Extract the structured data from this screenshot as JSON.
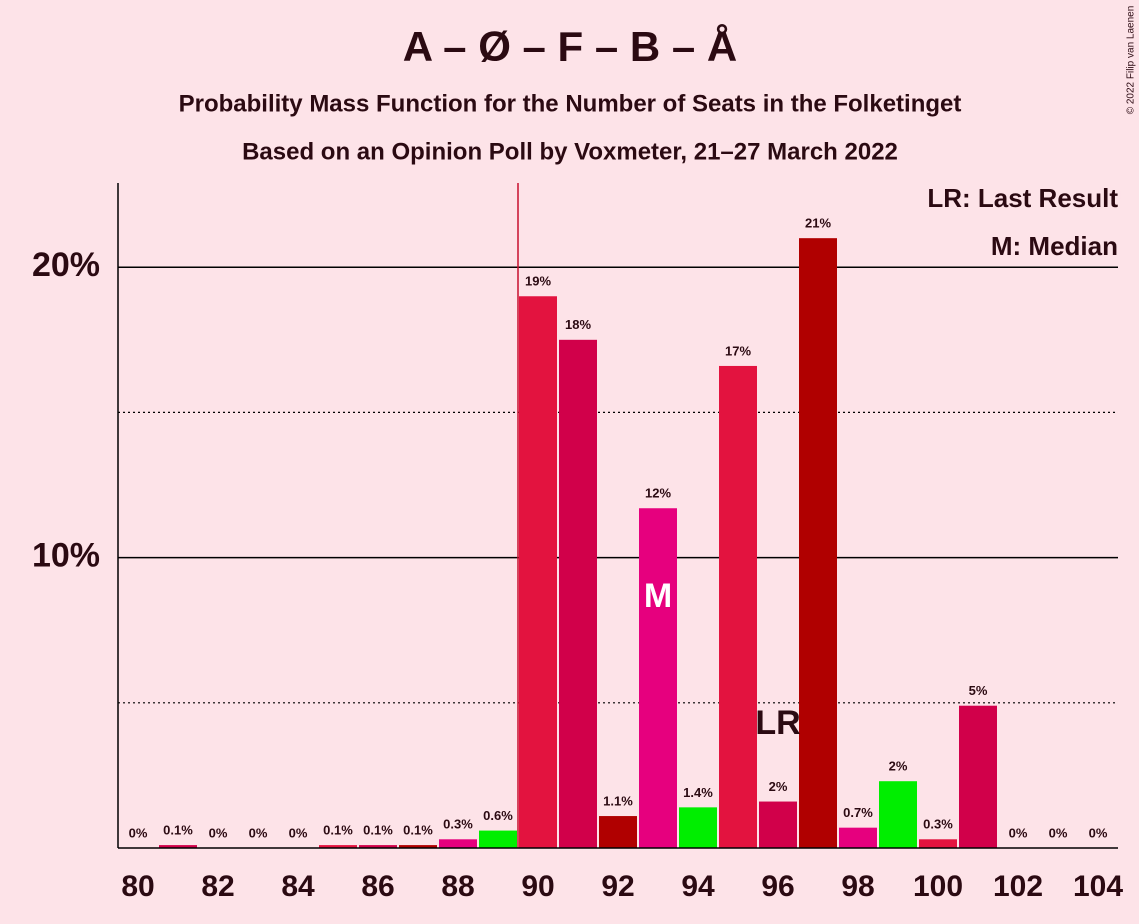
{
  "chart_data": {
    "type": "bar",
    "title": "A – Ø – F – B – Å",
    "subtitle": "Probability Mass Function for the Number of Seats in the Folketinget",
    "subtitle2": "Based on an Opinion Poll by Voxmeter, 21–27 March 2022",
    "copyright": "© 2022 Filip van Laenen",
    "x": [
      80,
      81,
      82,
      83,
      84,
      85,
      86,
      87,
      88,
      89,
      90,
      91,
      92,
      93,
      94,
      95,
      96,
      97,
      98,
      99,
      100,
      101,
      102,
      103,
      104
    ],
    "values": [
      0,
      0.1,
      0,
      0,
      0,
      0.1,
      0.1,
      0.1,
      0.3,
      0.6,
      19,
      17.5,
      1.1,
      11.7,
      1.4,
      16.6,
      1.6,
      21,
      0.7,
      2.3,
      0.3,
      4.9,
      0,
      0,
      0
    ],
    "value_labels": [
      "0%",
      "0.1%",
      "0%",
      "0%",
      "0%",
      "0.1%",
      "0.1%",
      "0.1%",
      "0.3%",
      "0.6%",
      "19%",
      "18%",
      "1.1%",
      "12%",
      "1.4%",
      "17%",
      "2%",
      "21%",
      "0.7%",
      "2%",
      "0.3%",
      "5%",
      "0%",
      "0%",
      "0%"
    ],
    "colors": [
      "#e3133f",
      "#d1004a",
      "#b00000",
      "#e6007e",
      "#00ee00",
      "#e3133f",
      "#d1004a",
      "#b00000",
      "#e6007e",
      "#00ee00",
      "#e3133f",
      "#d1004a",
      "#b00000",
      "#e6007e",
      "#00ee00",
      "#e3133f",
      "#d1004a",
      "#b00000",
      "#e6007e",
      "#00ee00",
      "#e3133f",
      "#d1004a",
      "#b00000",
      "#e6007e",
      "#00ee00"
    ],
    "xlim": [
      79.5,
      104.5
    ],
    "xticks": [
      80,
      82,
      84,
      86,
      88,
      90,
      92,
      94,
      96,
      98,
      100,
      102,
      104
    ],
    "ylim": [
      0,
      22.9
    ],
    "yticks": [
      {
        "value": 10,
        "label": "10%"
      },
      {
        "value": 20,
        "label": "20%"
      }
    ],
    "minor_yticks": [
      5,
      15
    ],
    "majority_x": 89.5,
    "median": {
      "x": 93,
      "label": "M"
    },
    "last_result": {
      "x": 96,
      "label": "LR"
    },
    "legend": [
      "LR: Last Result",
      "M: Median"
    ]
  }
}
